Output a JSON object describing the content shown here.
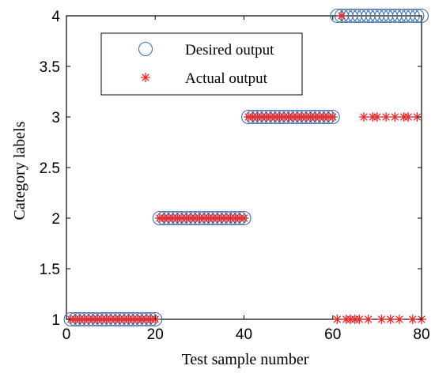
{
  "chart_data": {
    "type": "scatter",
    "xlabel": "Test sample number",
    "ylabel": "Category labels",
    "xlim": [
      0,
      80
    ],
    "ylim": [
      1,
      4
    ],
    "xticks": [
      0,
      20,
      40,
      60,
      80
    ],
    "yticks": [
      1,
      1.5,
      2,
      2.5,
      3,
      3.5,
      4
    ],
    "xtick_labels": [
      "0",
      "20",
      "40",
      "60",
      "80"
    ],
    "ytick_labels": [
      "1",
      "1.5",
      "2",
      "2.5",
      "3",
      "3.5",
      "4"
    ],
    "grid": false,
    "legend_position": "top-left",
    "series": [
      {
        "name": "Desired output",
        "marker": "circle",
        "color": "#3a6fb0",
        "x": [
          1,
          2,
          3,
          4,
          5,
          6,
          7,
          8,
          9,
          10,
          11,
          12,
          13,
          14,
          15,
          16,
          17,
          18,
          19,
          20,
          21,
          22,
          23,
          24,
          25,
          26,
          27,
          28,
          29,
          30,
          31,
          32,
          33,
          34,
          35,
          36,
          37,
          38,
          39,
          40,
          41,
          42,
          43,
          44,
          45,
          46,
          47,
          48,
          49,
          50,
          51,
          52,
          53,
          54,
          55,
          56,
          57,
          58,
          59,
          60,
          61,
          62,
          63,
          64,
          65,
          66,
          67,
          68,
          69,
          70,
          71,
          72,
          73,
          74,
          75,
          76,
          77,
          78,
          79,
          80
        ],
        "y": [
          1,
          1,
          1,
          1,
          1,
          1,
          1,
          1,
          1,
          1,
          1,
          1,
          1,
          1,
          1,
          1,
          1,
          1,
          1,
          1,
          2,
          2,
          2,
          2,
          2,
          2,
          2,
          2,
          2,
          2,
          2,
          2,
          2,
          2,
          2,
          2,
          2,
          2,
          2,
          2,
          3,
          3,
          3,
          3,
          3,
          3,
          3,
          3,
          3,
          3,
          3,
          3,
          3,
          3,
          3,
          3,
          3,
          3,
          3,
          3,
          4,
          4,
          4,
          4,
          4,
          4,
          4,
          4,
          4,
          4,
          4,
          4,
          4,
          4,
          4,
          4,
          4,
          4,
          4,
          4
        ]
      },
      {
        "name": "Actual output",
        "marker": "star",
        "color": "#e8262a",
        "x": [
          1,
          2,
          3,
          4,
          5,
          6,
          7,
          8,
          9,
          10,
          11,
          12,
          13,
          14,
          15,
          16,
          17,
          18,
          19,
          20,
          21,
          22,
          23,
          24,
          25,
          26,
          27,
          28,
          29,
          30,
          31,
          32,
          33,
          34,
          35,
          36,
          37,
          38,
          39,
          40,
          41,
          42,
          43,
          44,
          45,
          46,
          47,
          48,
          49,
          50,
          51,
          52,
          53,
          54,
          55,
          56,
          57,
          58,
          59,
          60,
          61,
          62,
          63,
          64,
          65,
          66,
          67,
          68,
          69,
          70,
          71,
          72,
          73,
          74,
          75,
          76,
          77,
          78,
          79,
          80
        ],
        "y": [
          1,
          1,
          1,
          1,
          1,
          1,
          1,
          1,
          1,
          1,
          1,
          1,
          1,
          1,
          1,
          1,
          1,
          1,
          1,
          1,
          2,
          2,
          2,
          2,
          2,
          2,
          2,
          2,
          2,
          2,
          2,
          2,
          2,
          2,
          2,
          2,
          2,
          2,
          2,
          2,
          3,
          3,
          3,
          3,
          3,
          3,
          3,
          3,
          3,
          3,
          3,
          3,
          3,
          3,
          3,
          3,
          3,
          3,
          3,
          3,
          1,
          4,
          1,
          1,
          1,
          1,
          3,
          1,
          3,
          3,
          1,
          3,
          1,
          3,
          1,
          3,
          3,
          1,
          3,
          1
        ]
      }
    ]
  }
}
